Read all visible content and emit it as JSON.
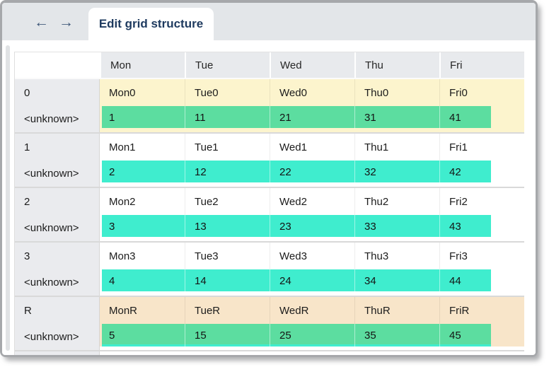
{
  "tab_bar": {
    "back_arrow": "←",
    "forward_arrow": "→",
    "tab_label": "Edit grid structure"
  },
  "colors": {
    "tab_bar_bg": "#e3e6e9",
    "tab_text": "#1e3a5f",
    "arrow": "#41597a",
    "header_cell_bg": "#e8eaed",
    "row_label_bg": "#eaebee",
    "row_highlight_yellow": "#fcf4cd",
    "row_highlight_peach": "#f8e5c9",
    "bar_green": "#5cdda0",
    "bar_turquoise": "#3fedce",
    "window_border": "#a6a8ab"
  },
  "grid": {
    "column_headers": [
      "",
      "Mon",
      "Tue",
      "Wed",
      "Thu",
      "Fri"
    ],
    "rows": [
      {
        "label": "0",
        "sub_label": "<unknown>",
        "cells": [
          "Mon0",
          "Tue0",
          "Wed0",
          "Thu0",
          "Fri0"
        ],
        "values": [
          "1",
          "11",
          "21",
          "31",
          "41"
        ],
        "row_bg": "#fcf4cd",
        "bar_color": "#5cdda0",
        "bar_edge_color": "",
        "below_bar_bg": "#fcf4cd"
      },
      {
        "label": "1",
        "sub_label": "<unknown>",
        "cells": [
          "Mon1",
          "Tue1",
          "Wed1",
          "Thu1",
          "Fri1"
        ],
        "values": [
          "2",
          "12",
          "22",
          "32",
          "42"
        ],
        "row_bg": "#ffffff",
        "bar_color": "#3fedce",
        "bar_edge_color": "",
        "below_bar_bg": "#ffffff"
      },
      {
        "label": "2",
        "sub_label": "<unknown>",
        "cells": [
          "Mon2",
          "Tue2",
          "Wed2",
          "Thu2",
          "Fri2"
        ],
        "values": [
          "3",
          "13",
          "23",
          "33",
          "43"
        ],
        "row_bg": "#ffffff",
        "bar_color": "#3fedce",
        "bar_edge_color": "",
        "below_bar_bg": "#ffffff"
      },
      {
        "label": "3",
        "sub_label": "<unknown>",
        "cells": [
          "Mon3",
          "Tue3",
          "Wed3",
          "Thu3",
          "Fri3"
        ],
        "values": [
          "4",
          "14",
          "24",
          "34",
          "44"
        ],
        "row_bg": "#ffffff",
        "bar_color": "#3fedce",
        "bar_edge_color": "",
        "below_bar_bg": "#ffffff"
      },
      {
        "label": "R",
        "sub_label": "<unknown>",
        "cells": [
          "MonR",
          "TueR",
          "WedR",
          "ThuR",
          "FriR"
        ],
        "values": [
          "5",
          "15",
          "25",
          "35",
          "45"
        ],
        "row_bg": "#f8e5c9",
        "bar_color": "#5cdda0",
        "bar_edge_color": "#3fedce",
        "below_bar_bg": "#ffffff"
      }
    ]
  }
}
